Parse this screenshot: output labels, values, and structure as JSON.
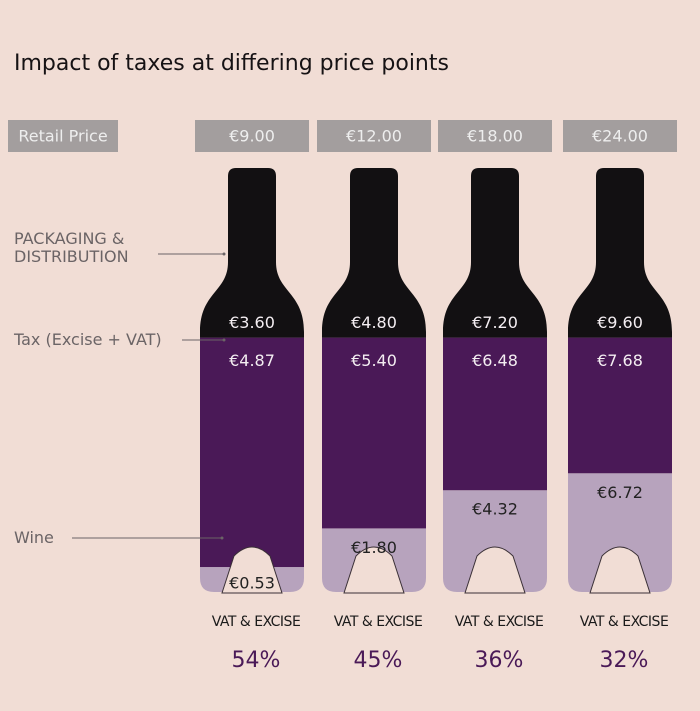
{
  "chart_data": {
    "type": "stacked-bottle",
    "title": "Impact of taxes at differing price points",
    "row_label": "Retail Price",
    "categories": [
      "€9.00",
      "€12.00",
      "€18.00",
      "€24.00"
    ],
    "series": [
      {
        "name": "PACKAGING & DISTRIBUTION",
        "color": "#121012",
        "label_color": "#f4eef2",
        "values": [
          3.6,
          4.8,
          7.2,
          9.6
        ],
        "value_labels": [
          "€3.60",
          "€4.80",
          "€7.20",
          "€9.60"
        ]
      },
      {
        "name": "Tax (Excise + VAT)",
        "color": "#4a1957",
        "label_color": "#f4eef2",
        "values": [
          4.87,
          5.4,
          6.48,
          7.68
        ],
        "value_labels": [
          "€4.87",
          "€5.40",
          "€6.48",
          "€7.68"
        ]
      },
      {
        "name": "Wine",
        "color": "#b7a3bd",
        "label_color": "#222222",
        "values": [
          0.53,
          1.8,
          4.32,
          6.72
        ],
        "value_labels": [
          "€0.53",
          "€1.80",
          "€4.32",
          "€6.72"
        ]
      }
    ],
    "share_label": "VAT & EXCISE",
    "shares": [
      54,
      45,
      36,
      32
    ],
    "share_labels": [
      "54%",
      "45%",
      "36%",
      "32%"
    ],
    "share_color": "#4a1957"
  }
}
